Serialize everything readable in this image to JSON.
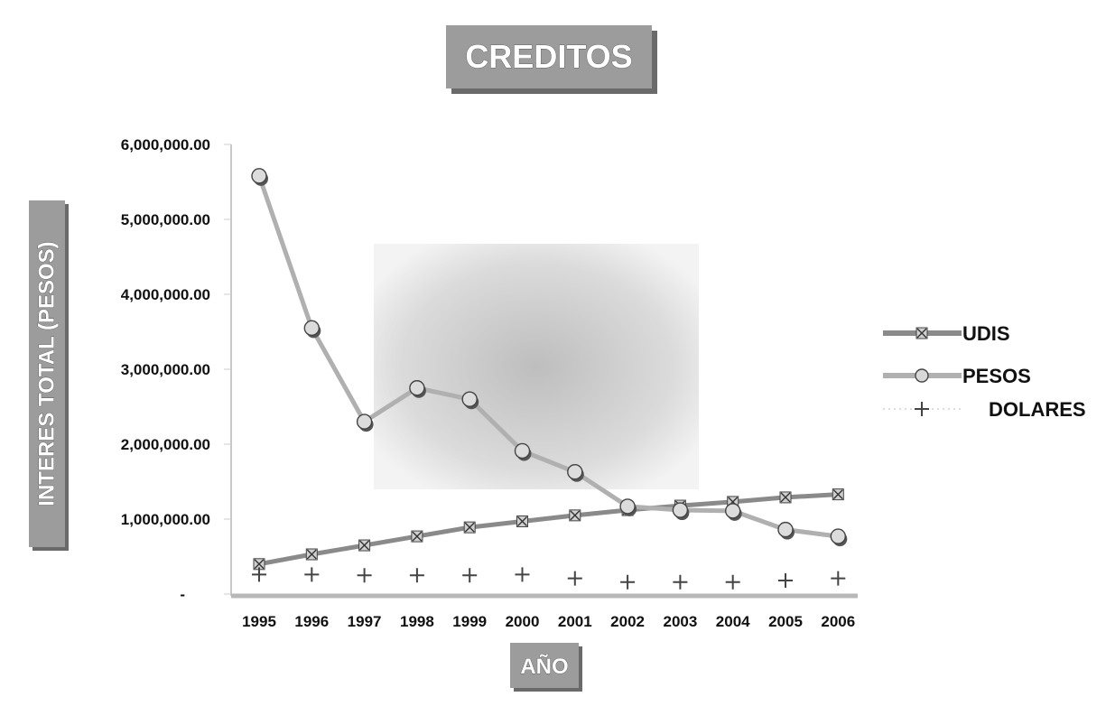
{
  "chart_data": {
    "type": "line",
    "title": "CREDITOS",
    "xlabel": "AÑO",
    "ylabel": "INTERES TOTAL (PESOS)",
    "categories": [
      "1995",
      "1996",
      "1997",
      "1998",
      "1999",
      "2000",
      "2001",
      "2002",
      "2003",
      "2004",
      "2005",
      "2006"
    ],
    "y_ticks": [
      "-",
      "1,000,000.00",
      "2,000,000.00",
      "3,000,000.00",
      "4,000,000.00",
      "5,000,000.00",
      "6,000,000.00"
    ],
    "ylim": [
      0,
      6000000
    ],
    "grid": false,
    "legend_position": "right",
    "series": [
      {
        "name": "UDIS",
        "marker": "x-square",
        "color": "#8a8a8a",
        "values": [
          400000,
          530000,
          650000,
          770000,
          890000,
          970000,
          1050000,
          1120000,
          1180000,
          1230000,
          1290000,
          1330000
        ]
      },
      {
        "name": "PESOS",
        "marker": "circle",
        "color": "#b0b0b0",
        "values": [
          5580000,
          3550000,
          2300000,
          2750000,
          2600000,
          1910000,
          1630000,
          1170000,
          1120000,
          1110000,
          860000,
          770000
        ]
      },
      {
        "name": "DOLARES",
        "marker": "plus",
        "color": "#555555",
        "values": [
          260000,
          260000,
          250000,
          250000,
          250000,
          260000,
          210000,
          160000,
          160000,
          160000,
          180000,
          210000
        ]
      }
    ]
  }
}
